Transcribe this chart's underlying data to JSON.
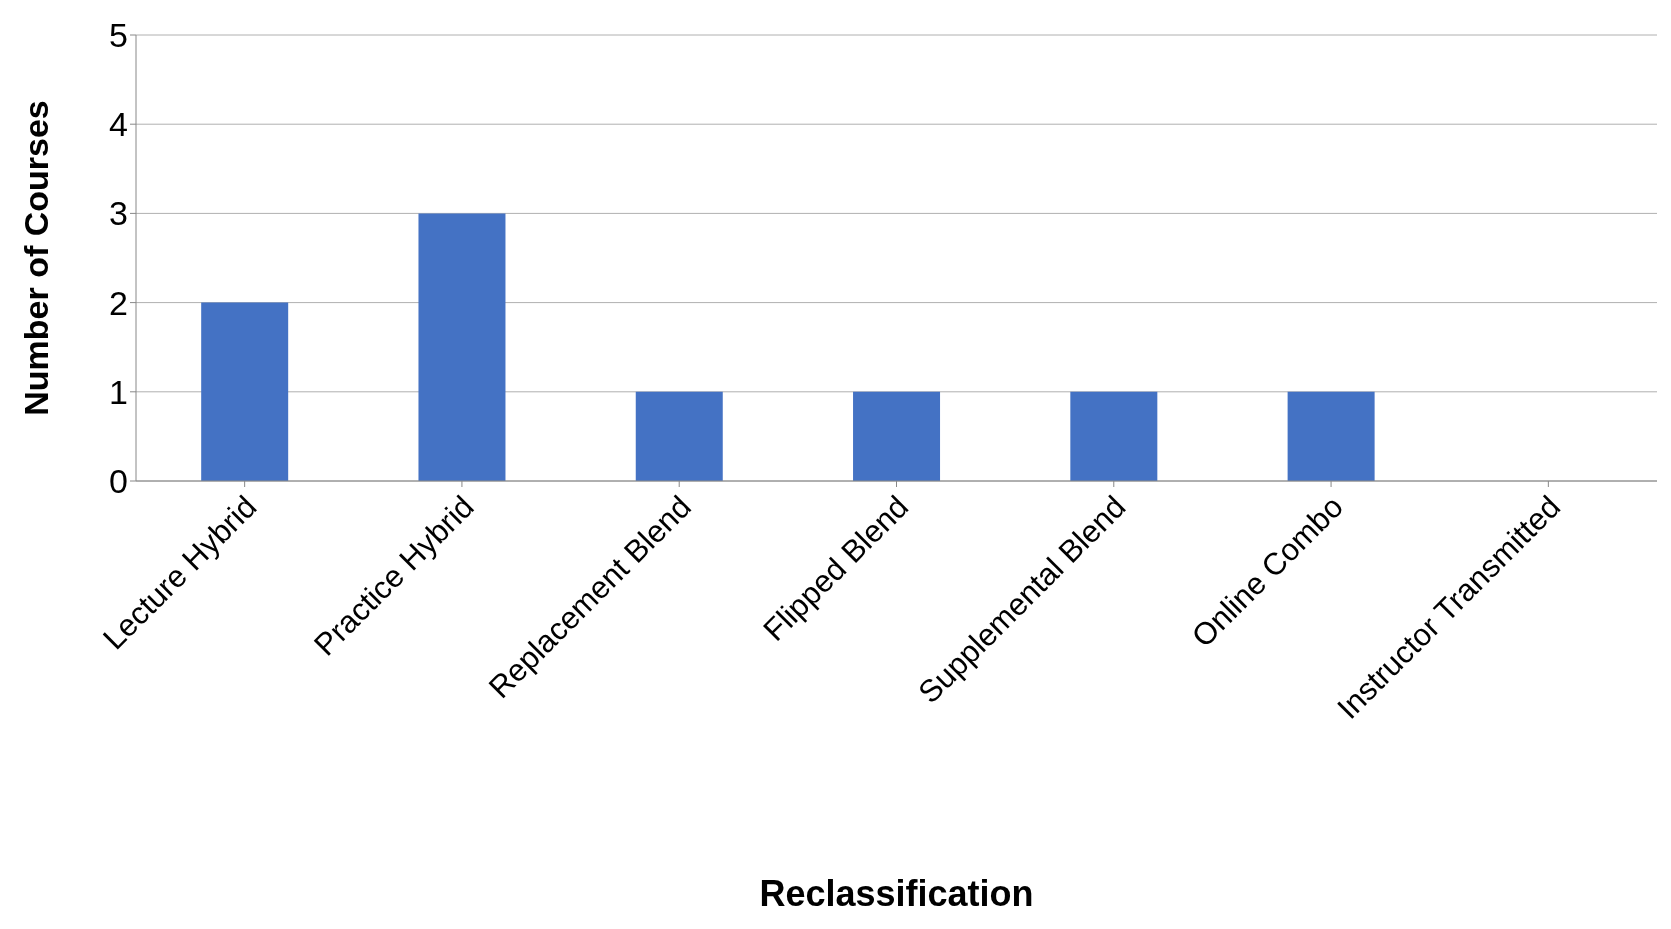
{
  "chart_data": {
    "type": "bar",
    "xlabel": "Reclassification",
    "ylabel": "Number of Courses",
    "categories": [
      "Lecture Hybrid",
      "Practice Hybrid",
      "Replacement Blend",
      "Flipped Blend",
      "Supplemental Blend",
      "Online Combo",
      "Instructor Transmitted"
    ],
    "values": [
      2,
      3,
      1,
      1,
      1,
      1,
      0
    ],
    "color": "#4472c4",
    "ylim": [
      0,
      5
    ],
    "yticks": [
      0,
      1,
      2,
      3,
      4,
      5
    ],
    "grid": "y",
    "legend": false
  }
}
